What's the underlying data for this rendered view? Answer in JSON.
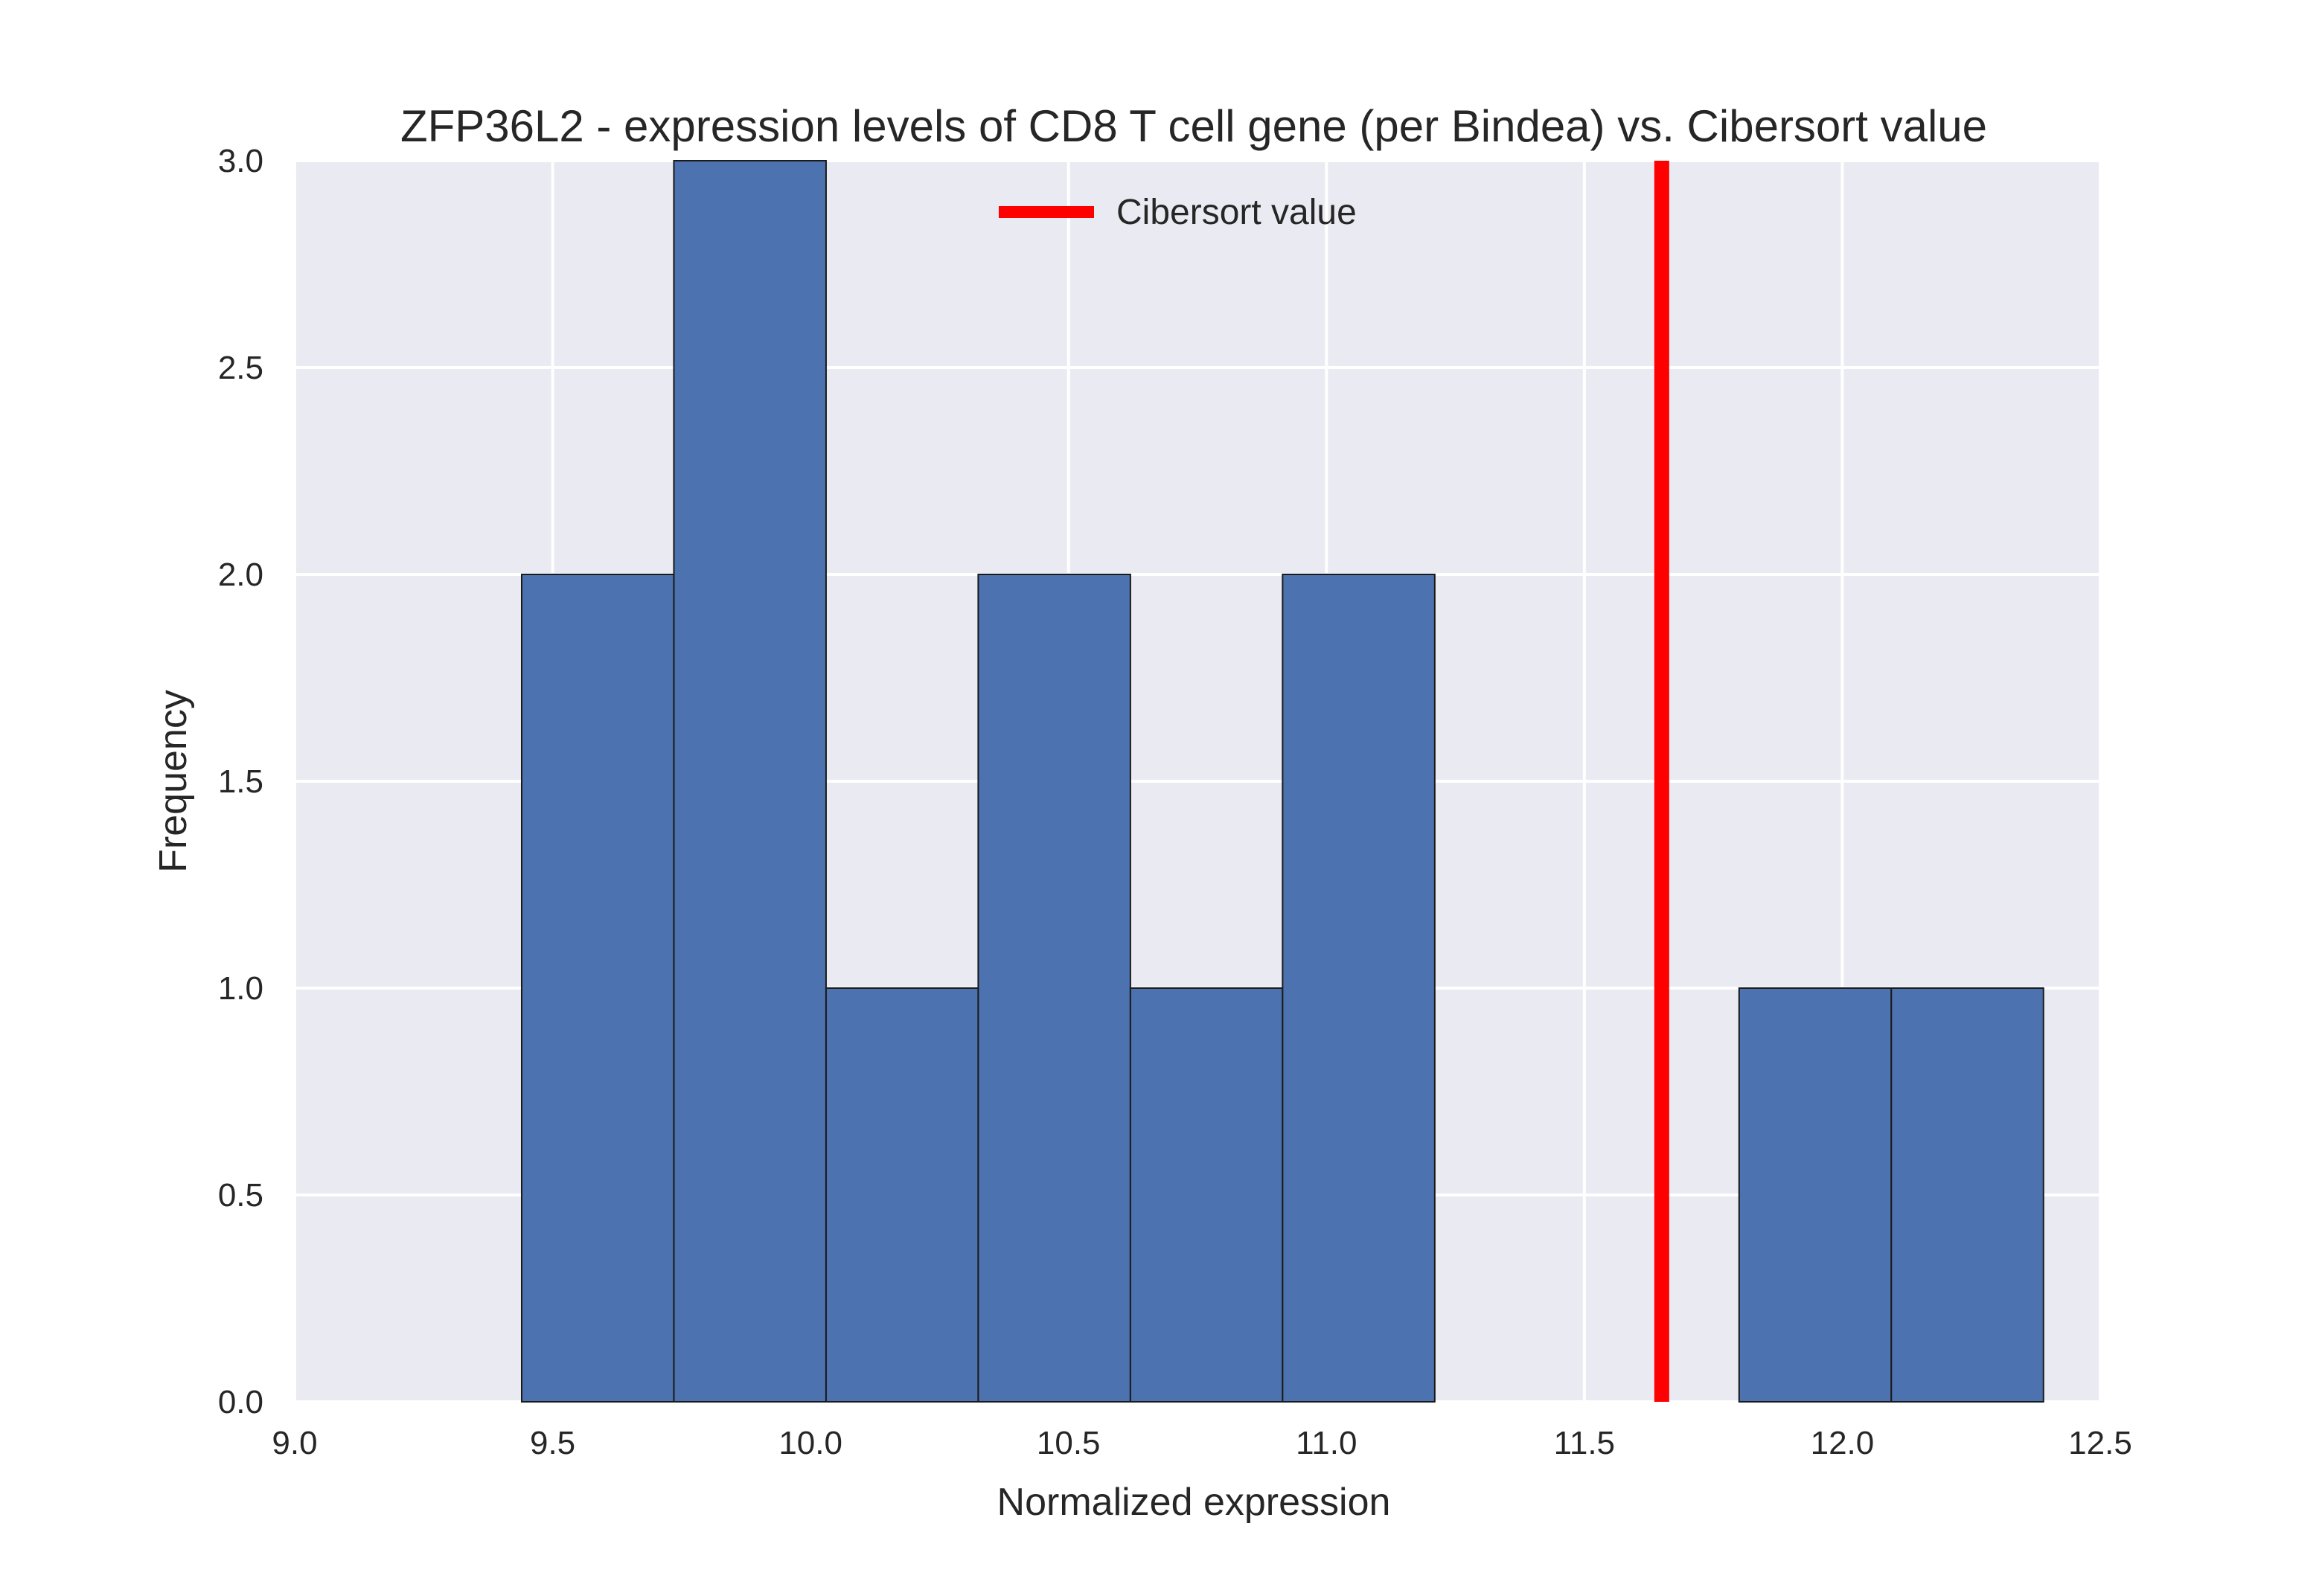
{
  "chart_data": {
    "type": "bar",
    "subtype": "histogram",
    "title": "ZFP36L2 - expression levels of CD8 T cell gene (per Bindea) vs. Cibersort value",
    "xlabel": "Normalized expression",
    "ylabel": "Frequency",
    "xlim": [
      9.0,
      12.5
    ],
    "ylim": [
      0.0,
      3.0
    ],
    "xticks": [
      "9.0",
      "9.5",
      "10.0",
      "10.5",
      "11.0",
      "11.5",
      "12.0",
      "12.5"
    ],
    "yticks": [
      "0.0",
      "0.5",
      "1.0",
      "1.5",
      "2.0",
      "2.5",
      "3.0"
    ],
    "bin_edges": [
      9.44,
      9.735,
      10.03,
      10.325,
      10.62,
      10.915,
      11.21,
      11.505,
      11.8,
      12.095,
      12.39
    ],
    "values": [
      2,
      3,
      1,
      2,
      1,
      2,
      0,
      0,
      1,
      1
    ],
    "bar_color": "#4c72b0",
    "reference_line": {
      "name": "Cibersort value",
      "x": 11.65,
      "color": "#ff0000"
    },
    "legend": {
      "entries": [
        "Cibersort value"
      ],
      "position": "upper center"
    },
    "grid": true,
    "background": "#eaeaf2"
  }
}
